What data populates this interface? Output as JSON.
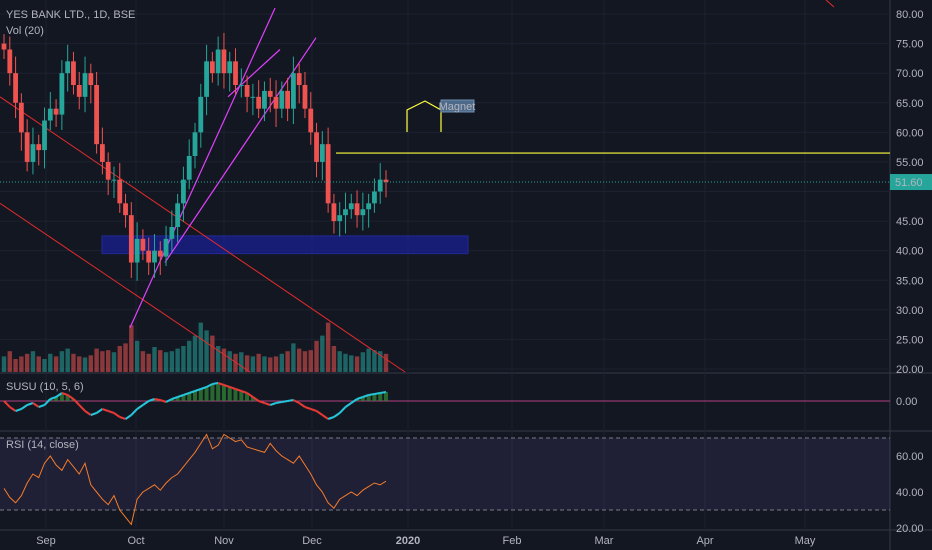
{
  "legend": {
    "symbol": "YES BANK LTD., 1D, BSE",
    "vol": "Vol (20)",
    "susu": "SUSU (10, 5, 6)",
    "rsi": "RSI (14, close)"
  },
  "colors": {
    "background": "#131722",
    "up": "#26a69a",
    "down": "#ef5350",
    "trendline": "#e32b2b",
    "channel": "#e040fb",
    "resistance": "#ffff3d",
    "support_zone": "#1a1fa0",
    "rsi_line": "#f57c2a",
    "rsi_band": "#7e57c2",
    "price_badge": "#26a69a"
  },
  "chart_data": [
    {
      "type": "candlestick",
      "name": "price",
      "symbol": "YES BANK LTD.",
      "interval": "1D",
      "exchange": "BSE",
      "last_price": "51.60",
      "y_ticks": [
        "80.00",
        "75.00",
        "70.00",
        "65.00",
        "60.00",
        "55.00",
        "50.00",
        "45.00",
        "40.00",
        "35.00",
        "30.00",
        "25.00",
        "20.00"
      ],
      "ylim": [
        20,
        80
      ],
      "x_ticks": [
        "Sep",
        "Oct",
        "Nov",
        "Dec",
        "2020",
        "Feb",
        "Mar",
        "Apr",
        "May"
      ],
      "closes": [
        74,
        70,
        65,
        60,
        55,
        58,
        57,
        62,
        64,
        63,
        70,
        72,
        68,
        66,
        70,
        68,
        58,
        55,
        52,
        52,
        48,
        46,
        38,
        42,
        40,
        38,
        40,
        39,
        42,
        44,
        48,
        52,
        56,
        60,
        66,
        72,
        70,
        74,
        70,
        72,
        68,
        68,
        66,
        66,
        64,
        67,
        66,
        64,
        67,
        64,
        70,
        68,
        64,
        60,
        55,
        58,
        48,
        45,
        46,
        47,
        48,
        46,
        47,
        48,
        50,
        52,
        51.6
      ],
      "resistance": 56.5,
      "support_zone": [
        39.5,
        42.5
      ],
      "annotation": "Magnet"
    },
    {
      "type": "bar",
      "name": "volume",
      "legend": "Vol (20)",
      "relative_values": [
        0.3,
        0.4,
        0.25,
        0.3,
        0.35,
        0.4,
        0.3,
        0.25,
        0.35,
        0.3,
        0.4,
        0.45,
        0.35,
        0.3,
        0.28,
        0.32,
        0.45,
        0.4,
        0.42,
        0.38,
        0.5,
        0.55,
        0.9,
        0.6,
        0.4,
        0.35,
        0.48,
        0.42,
        0.38,
        0.4,
        0.45,
        0.5,
        0.6,
        0.7,
        0.95,
        0.8,
        0.7,
        0.5,
        0.45,
        0.4,
        0.35,
        0.38,
        0.32,
        0.3,
        0.35,
        0.3,
        0.28,
        0.3,
        0.35,
        0.4,
        0.55,
        0.45,
        0.4,
        0.42,
        0.6,
        0.7,
        0.95,
        0.5,
        0.4,
        0.35,
        0.32,
        0.3,
        0.38,
        0.45,
        0.42,
        0.4,
        0.35
      ]
    },
    {
      "type": "area",
      "name": "SUSU (10, 5, 6)",
      "y_ticks": [
        "0.00"
      ],
      "values": [
        0,
        -0.3,
        -0.5,
        -0.4,
        -0.2,
        -0.1,
        -0.3,
        -0.2,
        0.1,
        0.2,
        0.4,
        0.3,
        0.1,
        -0.2,
        -0.5,
        -0.7,
        -0.6,
        -0.4,
        -0.5,
        -0.6,
        -0.8,
        -0.9,
        -0.7,
        -0.4,
        -0.2,
        0.0,
        0.1,
        0.05,
        -0.05,
        0.1,
        0.2,
        0.3,
        0.4,
        0.5,
        0.6,
        0.7,
        0.85,
        0.9,
        0.8,
        0.7,
        0.6,
        0.5,
        0.4,
        0.2,
        0.0,
        -0.1,
        -0.2,
        -0.1,
        -0.05,
        0.0,
        0.05,
        -0.1,
        -0.3,
        -0.4,
        -0.5,
        -0.7,
        -0.9,
        -0.8,
        -0.6,
        -0.3,
        -0.1,
        0.1,
        0.2,
        0.3,
        0.35,
        0.4,
        0.45
      ]
    },
    {
      "type": "line",
      "name": "RSI (14, close)",
      "y_ticks": [
        "60.00",
        "40.00",
        "20.00"
      ],
      "band": [
        30,
        70
      ],
      "values": [
        42,
        37,
        34,
        38,
        45,
        50,
        48,
        56,
        60,
        55,
        52,
        58,
        54,
        50,
        56,
        44,
        40,
        36,
        33,
        38,
        30,
        26,
        22,
        36,
        40,
        42,
        44,
        41,
        45,
        48,
        50,
        54,
        58,
        62,
        67,
        72,
        64,
        66,
        72,
        70,
        68,
        69,
        65,
        64,
        63,
        62,
        67,
        63,
        60,
        58,
        56,
        60,
        55,
        50,
        44,
        40,
        34,
        31,
        36,
        38,
        40,
        38,
        41,
        43,
        45,
        44,
        46
      ]
    }
  ]
}
